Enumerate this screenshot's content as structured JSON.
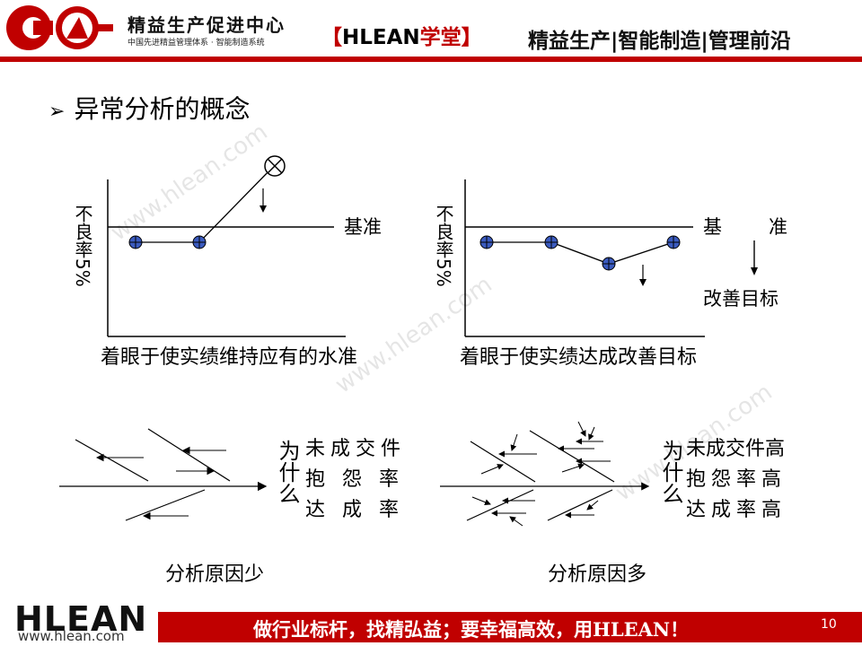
{
  "header": {
    "org_name": "精益生产促进中心",
    "org_sub": "中国先进精益管理体系 · 智能制造系统",
    "academy_open": "【",
    "academy_brand": "HLEAN",
    "academy_name": "学堂",
    "academy_close": "】",
    "tagline": "精益生产|智能制造|管理前沿"
  },
  "title": "异常分析的概念",
  "chart_left": {
    "ylabel": "不良率5%",
    "ref_label": "基准",
    "caption": "着眼于使实绩维持应有的水准"
  },
  "chart_right": {
    "ylabel": "不良率5%",
    "ref_label_a": "基",
    "ref_label_b": "准",
    "target_label": "改善目标",
    "caption": "着眼于使实绩达成改善目标"
  },
  "fishbone_left": {
    "why": "为什么",
    "reasons": [
      "未成交件",
      "抱 怨 率",
      "达 成 率"
    ],
    "caption": "分析原因少"
  },
  "fishbone_right": {
    "why": "为什么",
    "reasons": [
      "未成交件高",
      "抱怨率高",
      "达成率高"
    ],
    "caption": "分析原因多"
  },
  "watermark": "www.hlean.com",
  "footer": {
    "logo": "HLEAN",
    "url": "www.hlean.com",
    "slogan": "做行业标杆，找精弘益；要幸福高效，用HLEAN！",
    "page_number": "10"
  },
  "colors": {
    "accent": "#c00000",
    "marker_fill": "#3b5bbf",
    "brand_blue": "#1f3b8f"
  }
}
